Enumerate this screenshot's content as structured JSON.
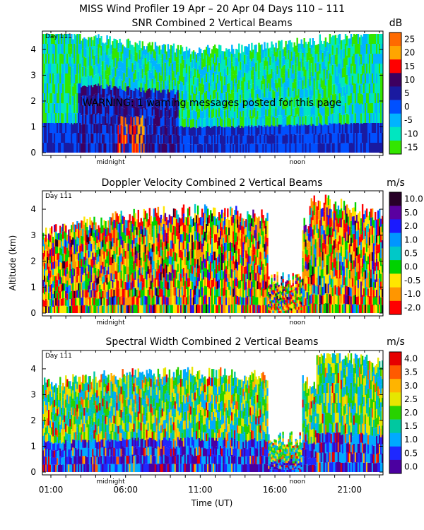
{
  "header": {
    "title": "MISS Wind Profiler  19 Apr – 20 Apr 04 Days 110 – 111"
  },
  "shared": {
    "ylabel": "Altitude (km)",
    "xlabel": "Time (UT)",
    "day_label": "Day 111",
    "x_ticks": [
      "01:00",
      "06:00",
      "11:00",
      "16:00",
      "21:00"
    ],
    "markers": [
      "midnight",
      "noon"
    ],
    "y_ticks": [
      "0",
      "1",
      "2",
      "3",
      "4"
    ]
  },
  "warning": "WARNING: 1 warning messages posted for this page",
  "chart_data": [
    {
      "type": "heatmap",
      "title": "SNR Combined 2 Vertical Beams",
      "unit": "dB",
      "xlabel": "Time (UT)",
      "ylabel": "Altitude (km)",
      "xlim_hours": [
        0,
        24
      ],
      "ylim": [
        0,
        4.8
      ],
      "colorbar_labels": [
        "25",
        "20",
        "15",
        "10",
        "5",
        "0",
        "-5",
        "-10",
        "-15"
      ],
      "colorbar_colors": [
        "#ff6a00",
        "#ffa500",
        "#ff0000",
        "#3d0060",
        "#1a1aa0",
        "#0050ff",
        "#00b4ff",
        "#00e6c0",
        "#33e600"
      ]
    },
    {
      "type": "heatmap",
      "title": "Doppler Velocity Combined 2 Vertical Beams",
      "unit": "m/s",
      "xlabel": "Time (UT)",
      "ylabel": "Altitude (km)",
      "xlim_hours": [
        0,
        24
      ],
      "ylim": [
        0,
        4.8
      ],
      "colorbar_labels": [
        "10.0",
        "5.0",
        "2.0",
        "1.0",
        "0.5",
        "0.0",
        "-0.5",
        "-1.0",
        "-2.0"
      ],
      "colorbar_colors": [
        "#280028",
        "#5a00a0",
        "#1a1aff",
        "#0096ff",
        "#00c8c8",
        "#00d200",
        "#ffe600",
        "#ff9600",
        "#ff0000"
      ]
    },
    {
      "type": "heatmap",
      "title": "Spectral Width Combined 2 Vertical Beams",
      "unit": "m/s",
      "xlabel": "Time (UT)",
      "ylabel": "Altitude (km)",
      "xlim_hours": [
        0,
        24
      ],
      "ylim": [
        0,
        4.8
      ],
      "colorbar_labels": [
        "4.0",
        "3.5",
        "3.0",
        "2.5",
        "2.0",
        "1.5",
        "1.0",
        "0.5",
        "0.0"
      ],
      "colorbar_colors": [
        "#e60000",
        "#ff5a00",
        "#ffb400",
        "#e6e600",
        "#28d200",
        "#00c8a0",
        "#00aaff",
        "#1e28ff",
        "#4b00a0"
      ]
    }
  ]
}
